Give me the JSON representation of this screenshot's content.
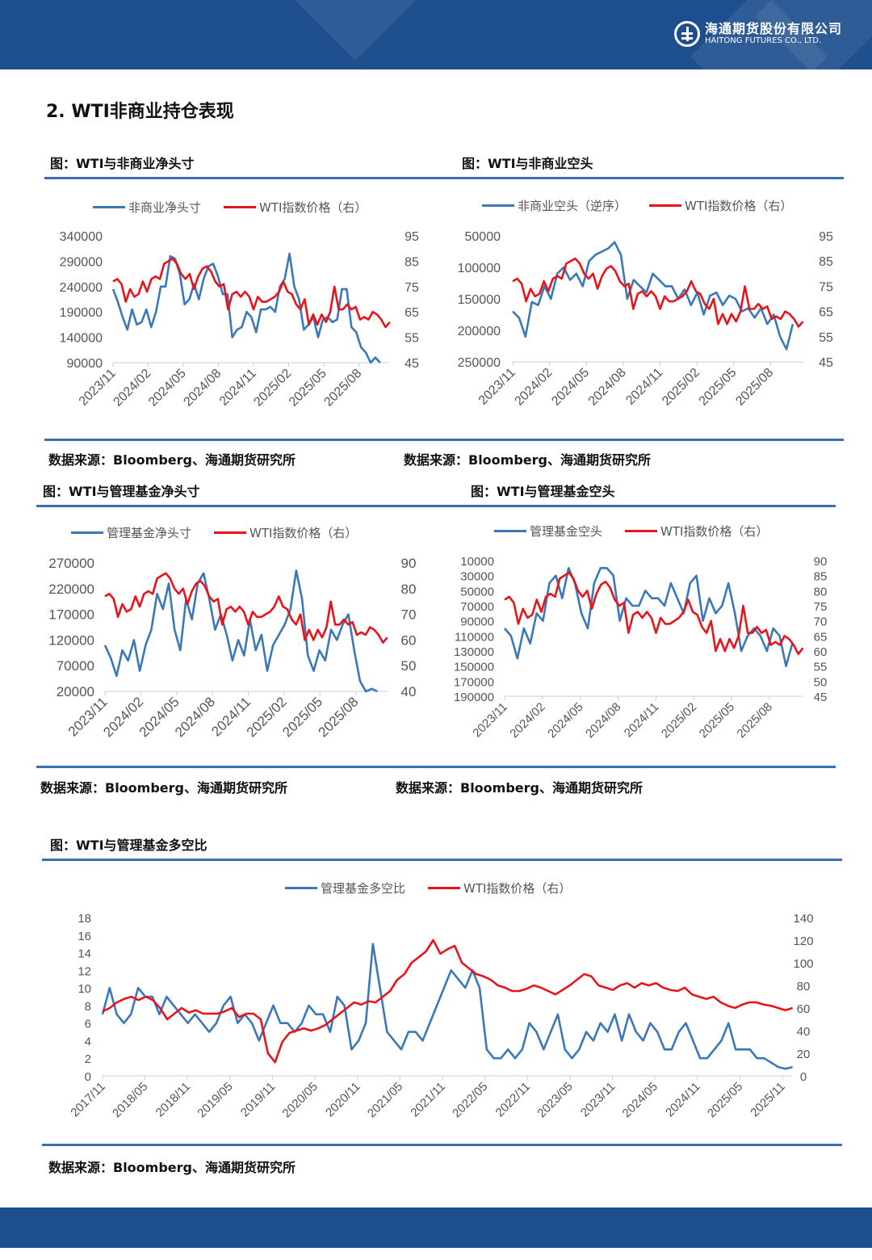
{
  "header": {
    "logo_cn": "海通期货股份有限公司",
    "logo_en": "HAITONG FUTURES CO., LTD."
  },
  "section_title": "2. WTI非商业持仓表现",
  "source_text": "数据来源：Bloomberg、海通期货研究所",
  "colors": {
    "brand": "#1d4f8e",
    "rule": "#3a6eb0",
    "blue_series": "#3a78b8",
    "red_series": "#e8141b"
  },
  "chart_data": [
    {
      "title": "图：WTI与非商业净头寸",
      "type": "line",
      "x_ticks": [
        "2023/11",
        "2024/02",
        "2024/05",
        "2024/08",
        "2024/11",
        "2025/02",
        "2025/05",
        "2025/08"
      ],
      "left_axis": {
        "min": 90000,
        "max": 340000,
        "reversed": false,
        "ticks": [
          "340000",
          "290000",
          "240000",
          "190000",
          "140000",
          "90000"
        ]
      },
      "right_axis": {
        "min": 45,
        "max": 95,
        "ticks": [
          "95",
          "85",
          "75",
          "65",
          "55",
          "45"
        ]
      },
      "series": [
        {
          "name": "非商业净头寸",
          "axis": "left",
          "color": "#3a78b8",
          "values": [
            235000,
            210000,
            180000,
            155000,
            195000,
            165000,
            170000,
            195000,
            160000,
            190000,
            240000,
            240000,
            300000,
            295000,
            265000,
            205000,
            215000,
            245000,
            215000,
            255000,
            280000,
            285000,
            260000,
            225000,
            225000,
            140000,
            155000,
            160000,
            190000,
            180000,
            150000,
            195000,
            195000,
            200000,
            190000,
            240000,
            255000,
            305000,
            240000,
            215000,
            155000,
            165000,
            180000,
            140000,
            175000,
            180000,
            170000,
            175000,
            235000,
            235000,
            160000,
            150000,
            120000,
            110000,
            90000,
            100000,
            90000
          ]
        },
        {
          "name": "WTI指数价格（右）",
          "axis": "right",
          "color": "#e8141b",
          "values": [
            77,
            78,
            76,
            69,
            74,
            71,
            72,
            77,
            73,
            78,
            79,
            78,
            84,
            85,
            86,
            84,
            80,
            78,
            80,
            74,
            79,
            82,
            83,
            81,
            77,
            75,
            76,
            66,
            72,
            73,
            71,
            73,
            71,
            66,
            71,
            69,
            69,
            70,
            71,
            73,
            77,
            73,
            72,
            68,
            66,
            70,
            60,
            64,
            60,
            64,
            61,
            65,
            75,
            66,
            66,
            68,
            66,
            67,
            62,
            63,
            62,
            65,
            64,
            62,
            59,
            61
          ]
        }
      ]
    },
    {
      "title": "图：WTI与非商业空头",
      "type": "line",
      "x_ticks": [
        "2023/11",
        "2024/02",
        "2024/05",
        "2024/08",
        "2024/11",
        "2025/02",
        "2025/05",
        "2025/08"
      ],
      "left_axis": {
        "min": 50000,
        "max": 250000,
        "reversed": true,
        "ticks": [
          "50000",
          "100000",
          "150000",
          "200000",
          "250000"
        ]
      },
      "right_axis": {
        "min": 45,
        "max": 95,
        "ticks": [
          "95",
          "85",
          "75",
          "65",
          "55",
          "45"
        ]
      },
      "series": [
        {
          "name": "非商业空头（逆序）",
          "axis": "left",
          "color": "#3a78b8",
          "values": [
            170000,
            180000,
            210000,
            155000,
            160000,
            130000,
            150000,
            110000,
            100000,
            120000,
            110000,
            130000,
            90000,
            80000,
            75000,
            70000,
            60000,
            80000,
            150000,
            120000,
            130000,
            140000,
            110000,
            120000,
            130000,
            130000,
            150000,
            135000,
            160000,
            140000,
            175000,
            145000,
            140000,
            160000,
            145000,
            150000,
            170000,
            165000,
            180000,
            165000,
            190000,
            175000,
            210000,
            230000,
            190000
          ]
        },
        {
          "name": "WTI指数价格（右）",
          "axis": "right",
          "color": "#e8141b",
          "values": [
            77,
            78,
            76,
            69,
            74,
            71,
            72,
            77,
            73,
            78,
            79,
            78,
            84,
            85,
            86,
            84,
            80,
            78,
            80,
            74,
            79,
            82,
            83,
            81,
            77,
            75,
            76,
            66,
            72,
            73,
            71,
            73,
            71,
            66,
            71,
            69,
            69,
            70,
            71,
            73,
            77,
            73,
            72,
            68,
            66,
            70,
            60,
            64,
            60,
            64,
            61,
            65,
            75,
            66,
            66,
            68,
            66,
            67,
            62,
            63,
            62,
            65,
            64,
            62,
            59,
            61
          ]
        }
      ]
    },
    {
      "title": "图：WTI与管理基金净头寸",
      "type": "line",
      "x_ticks": [
        "2023/11",
        "2024/02",
        "2024/05",
        "2024/08",
        "2024/11",
        "2025/02",
        "2025/05",
        "2025/08"
      ],
      "left_axis": {
        "min": 20000,
        "max": 270000,
        "reversed": false,
        "ticks": [
          "270000",
          "220000",
          "170000",
          "120000",
          "70000",
          "20000"
        ]
      },
      "right_axis": {
        "min": 40,
        "max": 90,
        "ticks": [
          "90",
          "80",
          "70",
          "60",
          "50",
          "40"
        ]
      },
      "series": [
        {
          "name": "管理基金净头寸",
          "axis": "left",
          "color": "#3a78b8",
          "values": [
            110000,
            85000,
            50000,
            100000,
            80000,
            120000,
            60000,
            110000,
            140000,
            210000,
            180000,
            230000,
            140000,
            100000,
            200000,
            160000,
            230000,
            250000,
            200000,
            140000,
            170000,
            130000,
            80000,
            120000,
            90000,
            160000,
            100000,
            130000,
            60000,
            110000,
            130000,
            150000,
            180000,
            255000,
            200000,
            90000,
            60000,
            100000,
            80000,
            140000,
            120000,
            150000,
            170000,
            100000,
            40000,
            20000,
            25000,
            20000
          ]
        },
        {
          "name": "WTI指数价格（右）",
          "axis": "right",
          "color": "#e8141b",
          "values": [
            77,
            78,
            76,
            69,
            74,
            71,
            72,
            77,
            73,
            78,
            79,
            78,
            84,
            85,
            86,
            84,
            80,
            78,
            80,
            74,
            79,
            82,
            83,
            81,
            77,
            75,
            76,
            66,
            72,
            73,
            71,
            73,
            71,
            66,
            71,
            69,
            69,
            70,
            71,
            73,
            77,
            73,
            72,
            68,
            66,
            70,
            60,
            64,
            60,
            64,
            61,
            65,
            75,
            66,
            66,
            68,
            66,
            67,
            62,
            63,
            62,
            65,
            64,
            62,
            59,
            61
          ]
        }
      ]
    },
    {
      "title": "图：WTI与管理基金空头",
      "type": "line",
      "x_ticks": [
        "2023/11",
        "2024/02",
        "2024/05",
        "2024/08",
        "2024/11",
        "2025/02",
        "2025/05",
        "2025/08"
      ],
      "left_axis": {
        "min": 10000,
        "max": 190000,
        "reversed": true,
        "ticks": [
          "10000",
          "30000",
          "50000",
          "70000",
          "90000",
          "110000",
          "130000",
          "150000",
          "170000",
          "190000"
        ]
      },
      "right_axis": {
        "min": 45,
        "max": 90,
        "ticks": [
          "90",
          "85",
          "80",
          "75",
          "70",
          "65",
          "60",
          "55",
          "50",
          "45"
        ]
      },
      "series": [
        {
          "name": "管理基金空头",
          "axis": "left",
          "color": "#3a78b8",
          "values": [
            100000,
            110000,
            140000,
            100000,
            120000,
            80000,
            90000,
            40000,
            30000,
            60000,
            20000,
            40000,
            80000,
            100000,
            40000,
            20000,
            20000,
            30000,
            90000,
            60000,
            70000,
            70000,
            50000,
            60000,
            60000,
            70000,
            40000,
            60000,
            80000,
            40000,
            30000,
            90000,
            60000,
            80000,
            70000,
            40000,
            80000,
            130000,
            110000,
            100000,
            110000,
            130000,
            100000,
            110000,
            150000,
            120000
          ]
        },
        {
          "name": "WTI指数价格（右）",
          "axis": "right",
          "color": "#e8141b",
          "values": [
            77,
            78,
            76,
            69,
            74,
            71,
            72,
            77,
            73,
            78,
            79,
            78,
            84,
            85,
            86,
            84,
            80,
            78,
            80,
            74,
            79,
            82,
            83,
            81,
            77,
            75,
            76,
            66,
            72,
            73,
            71,
            73,
            71,
            66,
            71,
            69,
            69,
            70,
            71,
            73,
            77,
            73,
            72,
            68,
            66,
            70,
            60,
            64,
            60,
            64,
            61,
            65,
            75,
            66,
            66,
            68,
            66,
            67,
            62,
            63,
            62,
            65,
            64,
            62,
            59,
            61
          ]
        }
      ]
    },
    {
      "title": "图：WTI与管理基金多空比",
      "type": "line",
      "x_ticks": [
        "2017/11",
        "2018/05",
        "2018/11",
        "2019/05",
        "2019/11",
        "2020/05",
        "2020/11",
        "2021/05",
        "2021/11",
        "2022/05",
        "2022/11",
        "2023/05",
        "2023/11",
        "2024/05",
        "2024/11",
        "2025/05",
        "2025/11"
      ],
      "left_axis": {
        "min": 0,
        "max": 18,
        "reversed": false,
        "ticks": [
          "18",
          "16",
          "14",
          "12",
          "10",
          "8",
          "6",
          "4",
          "2",
          "0"
        ]
      },
      "right_axis": {
        "min": 0,
        "max": 140,
        "ticks": [
          "140",
          "120",
          "100",
          "80",
          "60",
          "40",
          "20",
          "0"
        ]
      },
      "series": [
        {
          "name": "管理基金多空比",
          "axis": "left",
          "color": "#3a78b8",
          "values": [
            7,
            10,
            7,
            6,
            7,
            10,
            9,
            9,
            7,
            9,
            8,
            7,
            6,
            7,
            6,
            5,
            6,
            8,
            9,
            6,
            7,
            6,
            4,
            6,
            8,
            6,
            6,
            5,
            6,
            8,
            7,
            7,
            5,
            9,
            8,
            3,
            4,
            6,
            15,
            10,
            5,
            4,
            3,
            5,
            5,
            4,
            6,
            8,
            10,
            12,
            11,
            10,
            12,
            10,
            3,
            2,
            2,
            3,
            2,
            3,
            6,
            5,
            3,
            5,
            7,
            3,
            2,
            3,
            5,
            4,
            6,
            5,
            7,
            4,
            7,
            5,
            4,
            6,
            5,
            3,
            3,
            5,
            6,
            4,
            2,
            2,
            3,
            4,
            6,
            3,
            3,
            3,
            2,
            2,
            1.5,
            1,
            0.8,
            1
          ]
        },
        {
          "name": "WTI指数价格（右）",
          "axis": "right",
          "color": "#e8141b",
          "values": [
            57,
            60,
            65,
            68,
            70,
            67,
            70,
            67,
            60,
            50,
            55,
            60,
            56,
            58,
            55,
            55,
            55,
            57,
            60,
            52,
            55,
            55,
            50,
            20,
            12,
            30,
            38,
            40,
            42,
            40,
            42,
            45,
            50,
            55,
            60,
            65,
            63,
            66,
            65,
            70,
            75,
            85,
            90,
            100,
            105,
            110,
            120,
            108,
            112,
            115,
            100,
            95,
            90,
            88,
            85,
            80,
            78,
            75,
            75,
            77,
            80,
            78,
            75,
            72,
            76,
            80,
            85,
            90,
            88,
            80,
            78,
            76,
            80,
            82,
            78,
            82,
            80,
            82,
            78,
            76,
            75,
            78,
            72,
            70,
            68,
            70,
            65,
            62,
            60,
            63,
            65,
            65,
            63,
            62,
            60,
            58,
            60
          ]
        }
      ]
    }
  ]
}
